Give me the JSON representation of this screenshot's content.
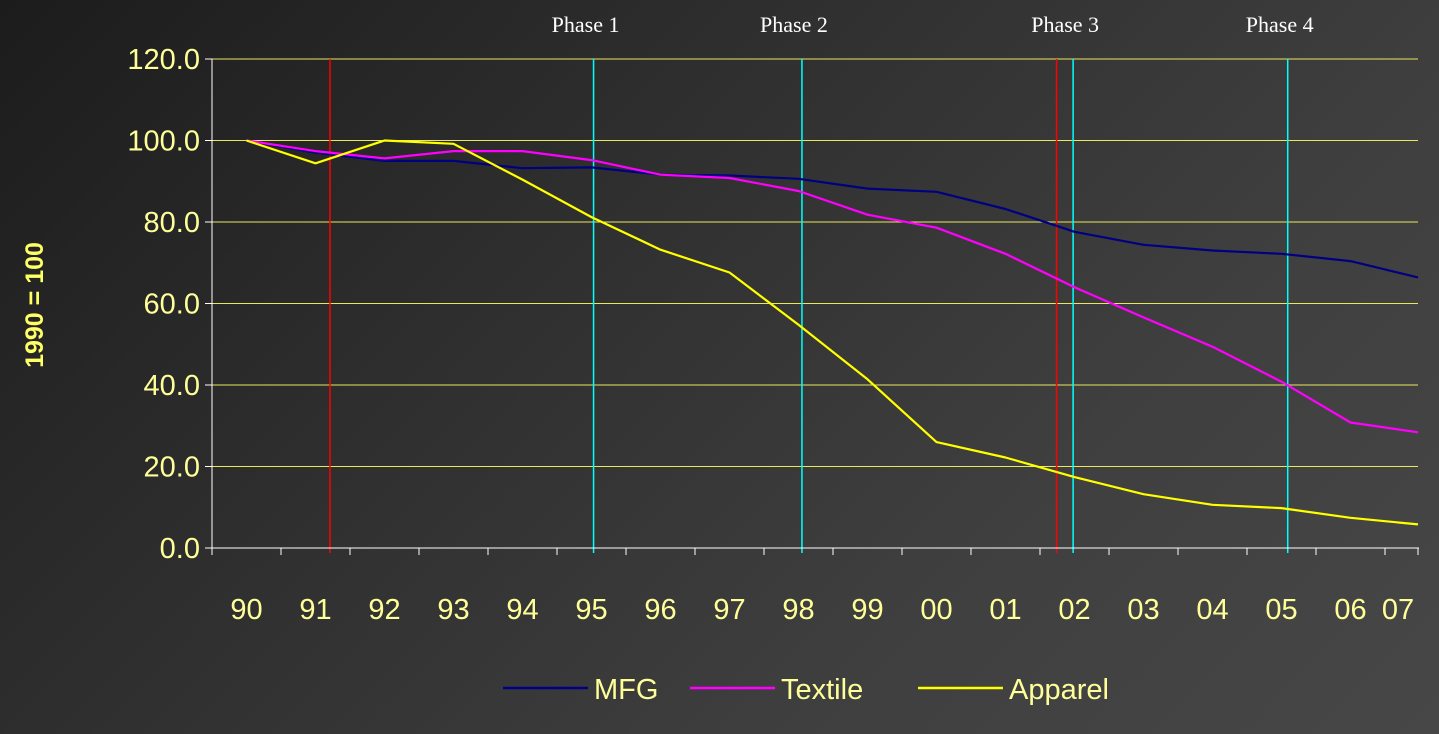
{
  "chart_data": {
    "type": "line",
    "title": "",
    "xlabel": "",
    "ylabel": "1990 = 100",
    "categories": [
      "90",
      "91",
      "92",
      "93",
      "94",
      "95",
      "96",
      "97",
      "98",
      "99",
      "00",
      "01",
      "02",
      "03",
      "04",
      "05",
      "06",
      "07"
    ],
    "ylim": [
      0,
      120
    ],
    "yticks": [
      "0.0",
      "20.0",
      "40.0",
      "60.0",
      "80.0",
      "100.0",
      "120.0"
    ],
    "grid": "horizontal",
    "legend_position": "bottom",
    "series": [
      {
        "name": "MFG",
        "color": "#000080",
        "values": [
          100.0,
          97.0,
          95.0,
          95.0,
          93.2,
          93.4,
          91.6,
          91.4,
          90.6,
          88.2,
          87.4,
          83.2,
          77.6,
          74.4,
          73.0,
          72.2,
          70.4,
          66.4
        ]
      },
      {
        "name": "Textile",
        "color": "#ff00ff",
        "values": [
          100.0,
          97.4,
          95.6,
          97.4,
          97.4,
          95.2,
          91.6,
          90.8,
          87.6,
          81.8,
          78.6,
          72.2,
          64.0,
          56.6,
          49.4,
          40.8,
          30.8,
          28.4
        ]
      },
      {
        "name": "Apparel",
        "color": "#ffff00",
        "values": [
          100.0,
          94.4,
          100.0,
          99.2,
          90.4,
          81.2,
          73.2,
          67.6,
          54.8,
          41.4,
          26.0,
          22.2,
          17.4,
          13.2,
          10.6,
          9.8,
          7.4,
          5.8
        ]
      }
    ],
    "phase_lines": [
      {
        "label": "Phase 1",
        "x": 5.03,
        "color": "#00ffff"
      },
      {
        "label": "Phase 2",
        "x": 8.05,
        "color": "#00ffff"
      },
      {
        "label": "Phase 3",
        "x": 11.98,
        "color": "#00ffff"
      },
      {
        "label": "Phase 4",
        "x": 15.09,
        "color": "#00ffff"
      }
    ],
    "event_lines": [
      {
        "x": 1.21,
        "color": "#ff0000"
      },
      {
        "x": 11.74,
        "color": "#ff0000"
      }
    ]
  },
  "colors": {
    "text": "#ffff99",
    "grid": "#e8e860",
    "axis": "#ffffff",
    "axis_labels": "#ffff66"
  }
}
